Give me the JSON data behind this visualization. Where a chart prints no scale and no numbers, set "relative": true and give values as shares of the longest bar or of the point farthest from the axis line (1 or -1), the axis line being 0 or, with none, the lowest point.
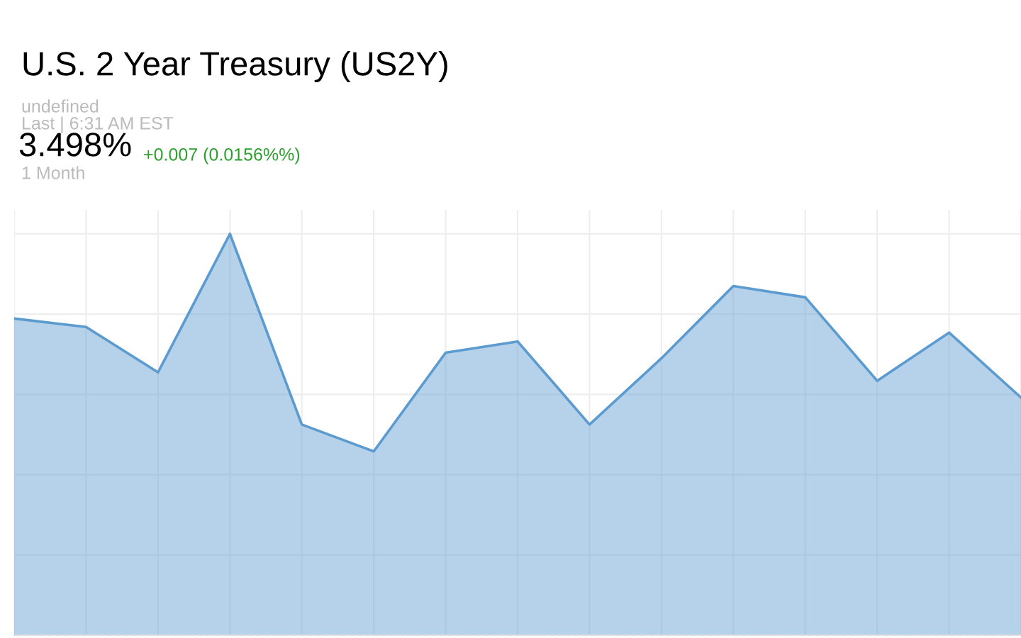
{
  "chart_data": {
    "type": "area",
    "title": "U.S. 2 Year Treasury (US2Y)",
    "annotations": [
      "undefined",
      "Last | 6:31 AM EST",
      "3.498%",
      "+0.007 (0.0156%%)",
      "1 Month"
    ],
    "categories": [
      null,
      null,
      null,
      null,
      null,
      null,
      null,
      null,
      null,
      null,
      null,
      null,
      null,
      null,
      null
    ],
    "relative": true,
    "series": [
      {
        "color": "#5b9bd0",
        "values": [
          0.789,
          0.768,
          0.655,
          1,
          0.525,
          0.458,
          0.704,
          0.732,
          0.525,
          0.69,
          0.87,
          0.842,
          0.634,
          0.754,
          0.592
        ]
      }
    ],
    "grid": true,
    "legend": false
  }
}
